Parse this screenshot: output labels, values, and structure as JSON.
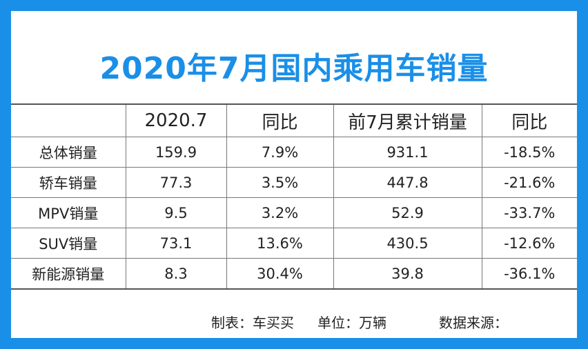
{
  "title": "2020年7月国内乘用车销量",
  "table": {
    "headers": [
      "",
      "2020.7",
      "同比",
      "前7月累计销量",
      "同比"
    ],
    "rows": [
      [
        "总体销量",
        "159.9",
        "7.9%",
        "931.1",
        "-18.5%"
      ],
      [
        "轿车销量",
        "77.3",
        "3.5%",
        "447.8",
        "-21.6%"
      ],
      [
        "MPV销量",
        "9.5",
        "3.2%",
        "52.9",
        "-33.7%"
      ],
      [
        "SUV销量",
        "73.1",
        "13.6%",
        "430.5",
        "-12.6%"
      ],
      [
        "新能源销量",
        "8.3",
        "30.4%",
        "39.8",
        "-36.1%"
      ]
    ]
  },
  "footer": {
    "maker": "制表：车买买",
    "unit": "单位：万辆",
    "source": "数据来源："
  },
  "colors": {
    "background": "#1a8fe8",
    "title": "#1a8fe8",
    "card": "#ffffff"
  }
}
